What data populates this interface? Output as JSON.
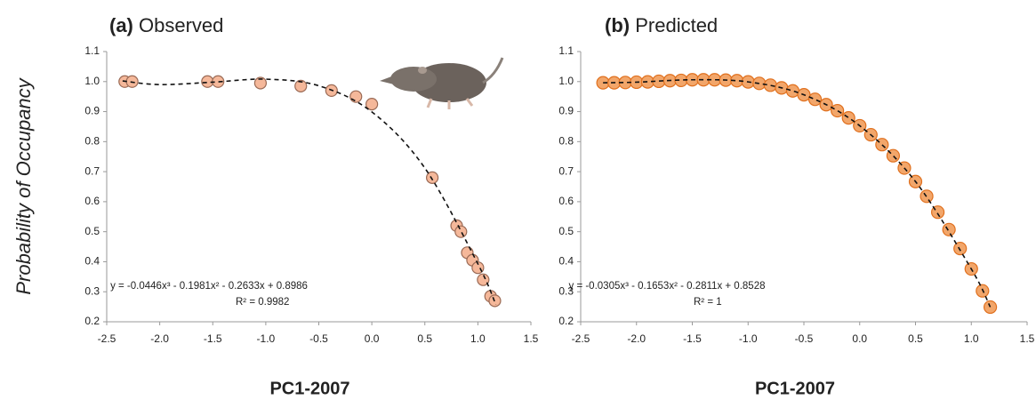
{
  "chart_data": [
    {
      "type": "scatter",
      "label": "(a)",
      "title": "Observed",
      "xlabel": "PC1-2007",
      "ylabel": "Probability of Occupancy",
      "annotations": [
        "y = -0.0446x³ - 0.1981x² - 0.2633x + 0.8986",
        "R² = 0.9982"
      ],
      "xlim": [
        -2.5,
        1.5
      ],
      "ylim": [
        0.2,
        1.1
      ],
      "xticks": [
        -2.5,
        {
          "value": -2,
          "label": "-2.0"
        },
        -1.5,
        {
          "value": -1,
          "label": "-1.0"
        },
        -0.5,
        {
          "value": 0,
          "label": "0.0"
        },
        0.5,
        {
          "value": 1,
          "label": "1.0"
        },
        1.5
      ],
      "yticks": [
        0.2,
        0.3,
        0.4,
        0.5,
        0.6,
        0.7,
        0.8,
        0.9,
        {
          "value": 1,
          "label": "1.0"
        },
        1.1
      ],
      "color": "#f5b89a",
      "edgecolor": "#9a6a55",
      "x": [
        -2.33,
        -2.26,
        -1.55,
        -1.45,
        -1.05,
        -0.67,
        -0.38,
        -0.15,
        0.0,
        0.57,
        0.8,
        0.84,
        0.9,
        0.95,
        1.0,
        1.05,
        1.12,
        1.16
      ],
      "values": [
        1.0,
        1.0,
        1.0,
        1.0,
        0.995,
        0.985,
        0.97,
        0.95,
        0.925,
        0.68,
        0.52,
        0.5,
        0.43,
        0.405,
        0.38,
        0.34,
        0.285,
        0.27
      ],
      "trend": {
        "x": [
          -2.35,
          -2,
          -1.5,
          -1,
          -0.5,
          0,
          0.5,
          1,
          1.17
        ],
        "values": [
          1.002,
          0.99,
          0.998,
          1.008,
          0.986,
          0.899,
          0.712,
          0.393,
          0.257
        ]
      }
    },
    {
      "type": "scatter",
      "label": "(b)",
      "title": "Predicted",
      "xlabel": "PC1-2007",
      "annotations": [
        "y = -0.0305x³ - 0.1653x² - 0.2811x + 0.8528",
        "R² = 1"
      ],
      "xlim": [
        -2.5,
        1.5
      ],
      "ylim": [
        0.2,
        1.1
      ],
      "xticks": [
        -2.5,
        {
          "value": -2,
          "label": "-2.0"
        },
        -1.5,
        {
          "value": -1,
          "label": "-1.0"
        },
        -0.5,
        {
          "value": 0,
          "label": "0.0"
        },
        0.5,
        {
          "value": 1,
          "label": "1.0"
        },
        1.5
      ],
      "yticks": [
        0.2,
        0.3,
        0.4,
        0.5,
        0.6,
        0.7,
        0.8,
        0.9,
        {
          "value": 1,
          "label": "1.0"
        },
        1.1
      ],
      "color": "#f2a66a",
      "edgecolor": "#e0701e",
      "x": [
        -2.3,
        -2.2,
        -2.1,
        -2,
        -1.9,
        -1.8,
        -1.7,
        -1.6,
        -1.5,
        -1.4,
        -1.3,
        -1.2,
        -1.1,
        -1,
        -0.9,
        -0.8,
        -0.7,
        -0.6,
        -0.5,
        -0.4,
        -0.3,
        -0.2,
        -0.1,
        0,
        0.1,
        0.2,
        0.3,
        0.4,
        0.5,
        0.6,
        0.7,
        0.8,
        0.9,
        1,
        1.1,
        1.17
      ],
      "values": [
        0.996,
        0.996,
        0.997,
        0.998,
        0.999,
        1.001,
        1.003,
        1.004,
        1.006,
        1.006,
        1.006,
        1.005,
        1.003,
        0.999,
        0.994,
        0.988,
        0.979,
        0.969,
        0.956,
        0.941,
        0.923,
        0.903,
        0.879,
        0.853,
        0.823,
        0.79,
        0.753,
        0.712,
        0.667,
        0.618,
        0.565,
        0.507,
        0.444,
        0.376,
        0.303,
        0.249
      ],
      "trend": {
        "x": [
          -2.3,
          -2,
          -1.5,
          -1,
          -0.5,
          0,
          0.5,
          1,
          1.17
        ],
        "values": [
          0.996,
          0.998,
          1.006,
          0.999,
          0.956,
          0.853,
          0.667,
          0.376,
          0.249
        ]
      }
    }
  ]
}
